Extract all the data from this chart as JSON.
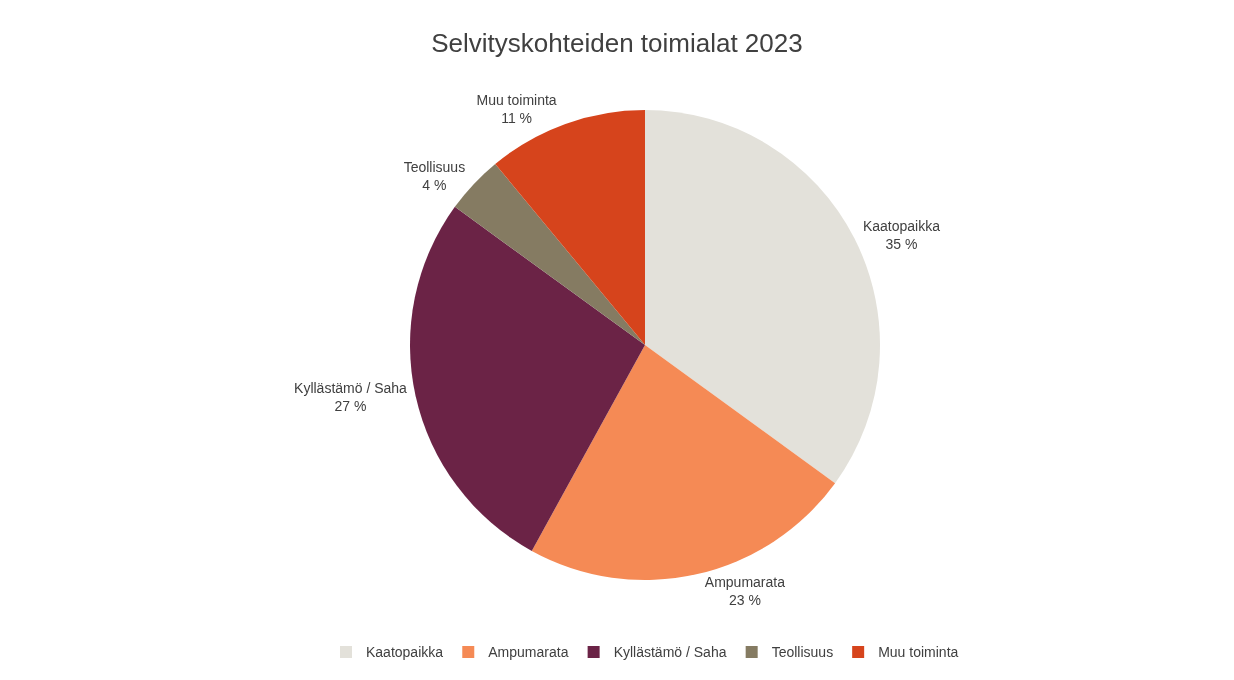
{
  "chart_data": {
    "type": "pie",
    "title": "Selvityskohteiden toimialat 2023",
    "categories": [
      "Kaatopaikka",
      "Ampumarata",
      "Kyllästämö / Saha",
      "Teollisuus",
      "Muu toiminta"
    ],
    "values": [
      35,
      23,
      27,
      4,
      11
    ],
    "colors": [
      "#e3e1da",
      "#f58a55",
      "#6b2346",
      "#857b62",
      "#d6441c"
    ],
    "value_labels": [
      "35 %",
      "23 %",
      "27 %",
      "4 %",
      "11 %"
    ],
    "legend": "bottom"
  }
}
